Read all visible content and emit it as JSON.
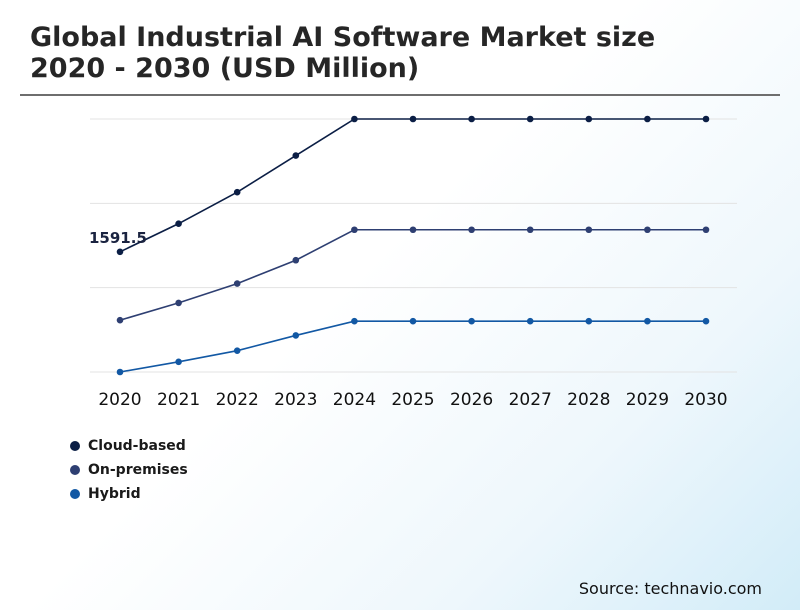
{
  "title": "Global Industrial AI Software Market size 2020 - 2030 (USD Million)",
  "source": "Source: technavio.com",
  "chart_data": {
    "type": "line",
    "x": [
      "2020",
      "2021",
      "2022",
      "2023",
      "2024",
      "2025",
      "2026",
      "2027",
      "2028",
      "2029",
      "2030"
    ],
    "ylim": [
      0,
      3000
    ],
    "grid": true,
    "legend_position": "bottom-left",
    "annotations": [
      {
        "series": "Cloud-based",
        "x": "2020",
        "label": "1591.5"
      }
    ],
    "series": [
      {
        "name": "Cloud-based",
        "color": "#0b1e45",
        "values": [
          1591.5,
          1730,
          1885,
          2065,
          2245,
          2245,
          2245,
          2245,
          2245,
          2245,
          2245
        ]
      },
      {
        "name": "On-premises",
        "color": "#2e3f72",
        "values": [
          1255,
          1340,
          1435,
          1550,
          1700,
          1700,
          1700,
          1700,
          1700,
          1700,
          1700
        ]
      },
      {
        "name": "Hybrid",
        "color": "#1258a4",
        "values": [
          1000,
          1050,
          1105,
          1180,
          1250,
          1250,
          1250,
          1250,
          1250,
          1250,
          1250
        ]
      }
    ]
  }
}
